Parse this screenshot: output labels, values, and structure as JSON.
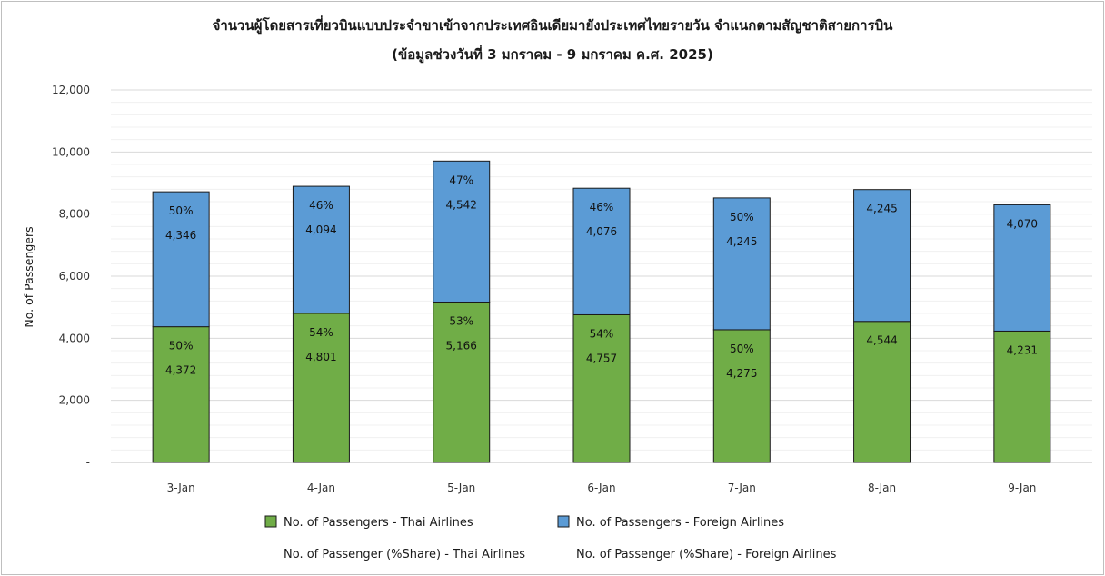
{
  "chart_data": {
    "type": "bar",
    "stacked": true,
    "title": "จำนวนผู้โดยสารเที่ยวบินแบบประจำขาเข้าจากประเทศอินเดียมายังประเทศไทยรายวัน  จำแนกตามสัญชาติสายการบิน",
    "subtitle": "(ข้อมูลช่วงวันที่ 3 มกราคม - 9 มกราคม ค.ศ. 2025)",
    "xlabel": "",
    "ylabel": "No. of Passengers",
    "ylim": [
      0,
      12000
    ],
    "yticks": [
      0,
      2000,
      4000,
      6000,
      8000,
      10000,
      12000
    ],
    "ytick_labels": [
      "-",
      "2,000",
      "4,000",
      "6,000",
      "8,000",
      "10,000",
      "12,000"
    ],
    "grid": true,
    "legend_position": "bottom",
    "categories": [
      "3-Jan",
      "4-Jan",
      "5-Jan",
      "6-Jan",
      "7-Jan",
      "8-Jan",
      "9-Jan"
    ],
    "series": [
      {
        "name": "No. of Passengers - Thai Airlines",
        "color": "#70ad47",
        "values": [
          4372,
          4801,
          5166,
          4757,
          4275,
          4544,
          4231
        ],
        "value_labels": [
          "4,372",
          "4,801",
          "5,166",
          "4,757",
          "4,275",
          "4,544",
          "4,231"
        ],
        "share_labels": [
          "50%",
          "54%",
          "53%",
          "54%",
          "50%",
          "",
          ""
        ]
      },
      {
        "name": "No. of Passengers - Foreign Airlines",
        "color": "#5b9bd5",
        "values": [
          4346,
          4094,
          4542,
          4076,
          4245,
          4245,
          4070
        ],
        "value_labels": [
          "4,346",
          "4,094",
          "4,542",
          "4,076",
          "4,245",
          "4,245",
          "4,070"
        ],
        "share_labels": [
          "50%",
          "46%",
          "47%",
          "46%",
          "50%",
          "",
          ""
        ]
      }
    ],
    "legend": [
      {
        "label": "No. of Passengers - Thai Airlines",
        "color": "#70ad47",
        "swatch": true
      },
      {
        "label": "No. of Passengers - Foreign Airlines",
        "color": "#5b9bd5",
        "swatch": true
      },
      {
        "label": "No. of Passenger (%Share) - Thai Airlines",
        "swatch": false
      },
      {
        "label": "No. of Passenger (%Share) - Foreign Airlines",
        "swatch": false
      }
    ]
  }
}
